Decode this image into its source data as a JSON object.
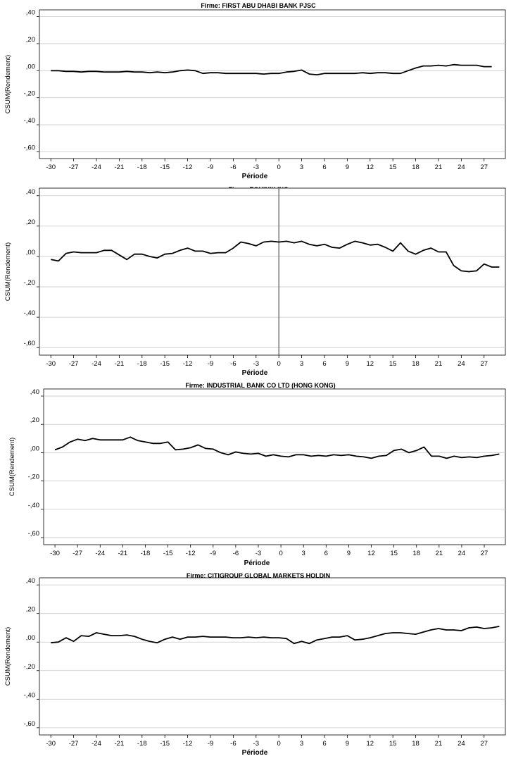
{
  "chart_data": [
    {
      "type": "line",
      "title": "Firme: FIRST ABU DHABI BANK PJSC",
      "xlabel": "Période",
      "ylabel": "CSUM(Rendement)",
      "ylim": [
        -0.65,
        0.45
      ],
      "yticks": [
        0.4,
        0.2,
        0.0,
        -0.2,
        -0.4,
        -0.6
      ],
      "ytick_labels": [
        ",40",
        ",20",
        ",00",
        "-,20",
        "-,40",
        "-,60"
      ],
      "xlim": [
        -31.5,
        29.8
      ],
      "xticks": [
        -30,
        -27,
        -24,
        -21,
        -18,
        -15,
        -12,
        -9,
        -6,
        -3,
        0,
        3,
        6,
        9,
        12,
        15,
        18,
        21,
        24,
        27
      ],
      "grid": true,
      "vline": null,
      "x_start": -30,
      "values": [
        0.0,
        0.0,
        -0.005,
        -0.005,
        -0.01,
        -0.005,
        -0.005,
        -0.01,
        -0.01,
        -0.01,
        -0.005,
        -0.01,
        -0.01,
        -0.015,
        -0.01,
        -0.015,
        -0.01,
        0.0,
        0.005,
        0.0,
        -0.02,
        -0.015,
        -0.015,
        -0.02,
        -0.02,
        -0.02,
        -0.02,
        -0.02,
        -0.025,
        -0.02,
        -0.02,
        -0.01,
        -0.005,
        0.005,
        -0.025,
        -0.03,
        -0.02,
        -0.02,
        -0.02,
        -0.02,
        -0.02,
        -0.015,
        -0.02,
        -0.015,
        -0.015,
        -0.02,
        -0.02,
        0.0,
        0.02,
        0.035,
        0.035,
        0.04,
        0.035,
        0.045,
        0.04,
        0.04,
        0.04,
        0.03,
        0.03
      ]
    },
    {
      "type": "line",
      "title": "Firme: EQUINIX INC",
      "xlabel": "Période",
      "ylabel": "CSUM(Rendement)",
      "ylim": [
        -0.65,
        0.45
      ],
      "yticks": [
        0.4,
        0.2,
        0.0,
        -0.2,
        -0.4,
        -0.6
      ],
      "ytick_labels": [
        ",40",
        ",20",
        ",00",
        "-,20",
        "-,40",
        "-,60"
      ],
      "xlim": [
        -31.5,
        29.8
      ],
      "xticks": [
        -30,
        -27,
        -24,
        -21,
        -18,
        -15,
        -12,
        -9,
        -6,
        -3,
        0,
        3,
        6,
        9,
        12,
        15,
        18,
        21,
        24,
        27
      ],
      "grid": true,
      "vline": 0,
      "x_start": -30,
      "values": [
        -0.02,
        -0.03,
        0.02,
        0.03,
        0.025,
        0.025,
        0.025,
        0.04,
        0.04,
        0.01,
        -0.02,
        0.015,
        0.015,
        0.0,
        -0.01,
        0.015,
        0.02,
        0.04,
        0.055,
        0.035,
        0.035,
        0.02,
        0.025,
        0.025,
        0.055,
        0.095,
        0.085,
        0.07,
        0.095,
        0.1,
        0.095,
        0.1,
        0.09,
        0.1,
        0.08,
        0.07,
        0.08,
        0.06,
        0.055,
        0.08,
        0.1,
        0.09,
        0.075,
        0.08,
        0.06,
        0.035,
        0.09,
        0.035,
        0.015,
        0.04,
        0.055,
        0.03,
        0.03,
        -0.06,
        -0.095,
        -0.1,
        -0.095,
        -0.05,
        -0.07,
        -0.07
      ]
    },
    {
      "type": "line",
      "title": "Firme: INDUSTRIAL BANK CO LTD (HONG KONG)",
      "xlabel": "Période",
      "ylabel": "CSUM(Rendement)",
      "ylim": [
        -0.65,
        0.45
      ],
      "yticks": [
        0.4,
        0.2,
        0.0,
        -0.2,
        -0.4,
        -0.6
      ],
      "ytick_labels": [
        ",40",
        ",20",
        ",00",
        "-,20",
        "-,40",
        "-,60"
      ],
      "xlim": [
        -31.5,
        29.8
      ],
      "xticks": [
        -30,
        -27,
        -24,
        -21,
        -18,
        -15,
        -12,
        -9,
        -6,
        -3,
        0,
        3,
        6,
        9,
        12,
        15,
        18,
        21,
        24,
        27
      ],
      "grid": true,
      "vline": null,
      "x_start": -30,
      "values": [
        0.02,
        0.04,
        0.075,
        0.095,
        0.085,
        0.1,
        0.09,
        0.09,
        0.09,
        0.09,
        0.11,
        0.085,
        0.075,
        0.065,
        0.065,
        0.075,
        0.02,
        0.025,
        0.035,
        0.055,
        0.03,
        0.025,
        0.0,
        -0.015,
        0.005,
        -0.005,
        -0.01,
        -0.005,
        -0.025,
        -0.015,
        -0.025,
        -0.03,
        -0.015,
        -0.015,
        -0.025,
        -0.02,
        -0.025,
        -0.015,
        -0.02,
        -0.015,
        -0.025,
        -0.03,
        -0.04,
        -0.025,
        -0.02,
        0.015,
        0.025,
        0.0,
        0.015,
        0.04,
        -0.025,
        -0.025,
        -0.04,
        -0.025,
        -0.035,
        -0.03,
        -0.035,
        -0.025,
        -0.02,
        -0.01
      ]
    },
    {
      "type": "line",
      "title": "Firme: CITIGROUP GLOBAL MARKETS HOLDIN",
      "xlabel": "Période",
      "ylabel": "CSUM(Rendement)",
      "ylim": [
        -0.65,
        0.45
      ],
      "yticks": [
        0.4,
        0.2,
        0.0,
        -0.2,
        -0.4,
        -0.6
      ],
      "ytick_labels": [
        ",40",
        ",20",
        ",00",
        "-,20",
        "-,40",
        "-,60"
      ],
      "xlim": [
        -31.5,
        29.8
      ],
      "xticks": [
        -30,
        -27,
        -24,
        -21,
        -18,
        -15,
        -12,
        -9,
        -6,
        -3,
        0,
        3,
        6,
        9,
        12,
        15,
        18,
        21,
        24,
        27
      ],
      "grid": true,
      "vline": null,
      "x_start": -30,
      "values": [
        -0.005,
        0.0,
        0.03,
        0.005,
        0.045,
        0.04,
        0.065,
        0.055,
        0.045,
        0.045,
        0.05,
        0.04,
        0.02,
        0.005,
        -0.005,
        0.02,
        0.035,
        0.02,
        0.035,
        0.035,
        0.04,
        0.035,
        0.035,
        0.035,
        0.03,
        0.03,
        0.035,
        0.03,
        0.035,
        0.03,
        0.03,
        0.025,
        -0.01,
        0.005,
        -0.01,
        0.015,
        0.025,
        0.035,
        0.035,
        0.045,
        0.015,
        0.02,
        0.03,
        0.045,
        0.06,
        0.065,
        0.065,
        0.06,
        0.055,
        0.07,
        0.085,
        0.095,
        0.085,
        0.085,
        0.08,
        0.1,
        0.105,
        0.095,
        0.1,
        0.11
      ]
    }
  ]
}
